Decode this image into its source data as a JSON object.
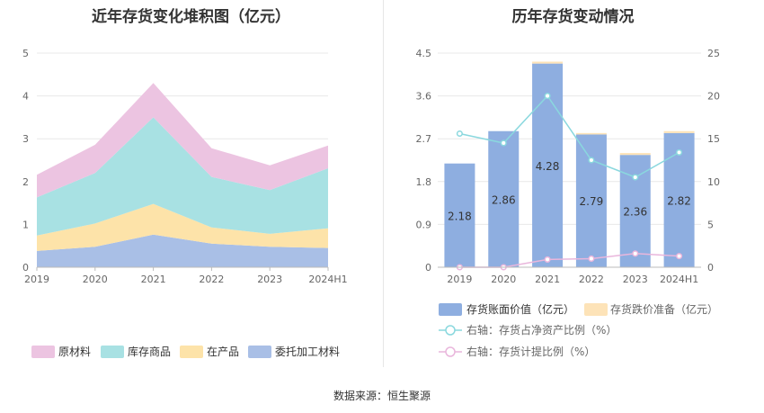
{
  "left_chart": {
    "title": "近年存货变化堆积图（亿元）",
    "legend": [
      {
        "name": "原材料",
        "color": "#ecc4e1"
      },
      {
        "name": "库存商品",
        "color": "#a8e1e3"
      },
      {
        "name": "在产品",
        "color": "#fde3a9"
      },
      {
        "name": "委托加工材料",
        "color": "#a9bfe6"
      }
    ]
  },
  "right_chart": {
    "title": "历年存货变动情况",
    "legend": [
      {
        "name": "存货账面价值（亿元）",
        "color": "#8eaee0"
      },
      {
        "name": "存货跌价准备（亿元）",
        "color": "#fde3b8"
      },
      {
        "name": "右轴：存货占净资产比例（%）",
        "color": "#8ad8de"
      },
      {
        "name": "右轴：存货计提比例（%）",
        "color": "#e9b6dc"
      }
    ]
  },
  "chart_data": [
    {
      "type": "area",
      "stacked": true,
      "title": "近年存货变化堆积图（亿元）",
      "categories": [
        "2019",
        "2020",
        "2021",
        "2022",
        "2023",
        "2024H1"
      ],
      "ylim": [
        0,
        5
      ],
      "yticks": [
        0,
        1,
        2,
        3,
        4,
        5
      ],
      "grid": true,
      "legend_position": "bottom",
      "series": [
        {
          "name": "委托加工材料",
          "color": "#a9bfe6",
          "values": [
            0.38,
            0.48,
            0.76,
            0.55,
            0.48,
            0.45
          ]
        },
        {
          "name": "在产品",
          "color": "#fde3a9",
          "values": [
            0.36,
            0.54,
            0.72,
            0.38,
            0.3,
            0.46
          ]
        },
        {
          "name": "库存商品",
          "color": "#a8e1e3",
          "values": [
            0.89,
            1.18,
            2.02,
            1.18,
            1.02,
            1.4
          ]
        },
        {
          "name": "原材料",
          "color": "#ecc4e1",
          "values": [
            0.53,
            0.66,
            0.8,
            0.67,
            0.58,
            0.53
          ]
        }
      ]
    },
    {
      "type": "bar",
      "stacked": true,
      "title": "历年存货变动情况",
      "categories": [
        "2019",
        "2020",
        "2021",
        "2022",
        "2023",
        "2024H1"
      ],
      "ylim": [
        0,
        4.5
      ],
      "yticks": [
        "0",
        "0.9",
        "1.8",
        "2.7",
        "3.6",
        "4.5"
      ],
      "y2lim": [
        0,
        25
      ],
      "y2ticks": [
        0,
        5,
        10,
        15,
        20,
        25
      ],
      "grid": true,
      "legend_position": "bottom",
      "series": [
        {
          "name": "存货账面价值（亿元）",
          "axis": "left",
          "color": "#8eaee0",
          "values": [
            2.18,
            2.86,
            4.28,
            2.79,
            2.36,
            2.82
          ],
          "labels": [
            "2.18",
            "2.86",
            "4.28",
            "2.79",
            "2.36",
            "2.82"
          ]
        },
        {
          "name": "存货跌价准备（亿元）",
          "axis": "left",
          "color": "#fde3b8",
          "values": [
            0.0,
            0.0,
            0.04,
            0.03,
            0.04,
            0.04
          ]
        },
        {
          "name": "右轴：存货占净资产比例（%）",
          "axis": "right",
          "type": "line",
          "color": "#8ad8de",
          "values": [
            15.6,
            14.5,
            20.0,
            12.5,
            10.5,
            13.4
          ]
        },
        {
          "name": "右轴：存货计提比例（%）",
          "axis": "right",
          "type": "line",
          "color": "#e9b6dc",
          "values": [
            0.0,
            0.0,
            0.9,
            1.0,
            1.6,
            1.3
          ]
        }
      ]
    }
  ],
  "source": "数据来源：恒生聚源"
}
